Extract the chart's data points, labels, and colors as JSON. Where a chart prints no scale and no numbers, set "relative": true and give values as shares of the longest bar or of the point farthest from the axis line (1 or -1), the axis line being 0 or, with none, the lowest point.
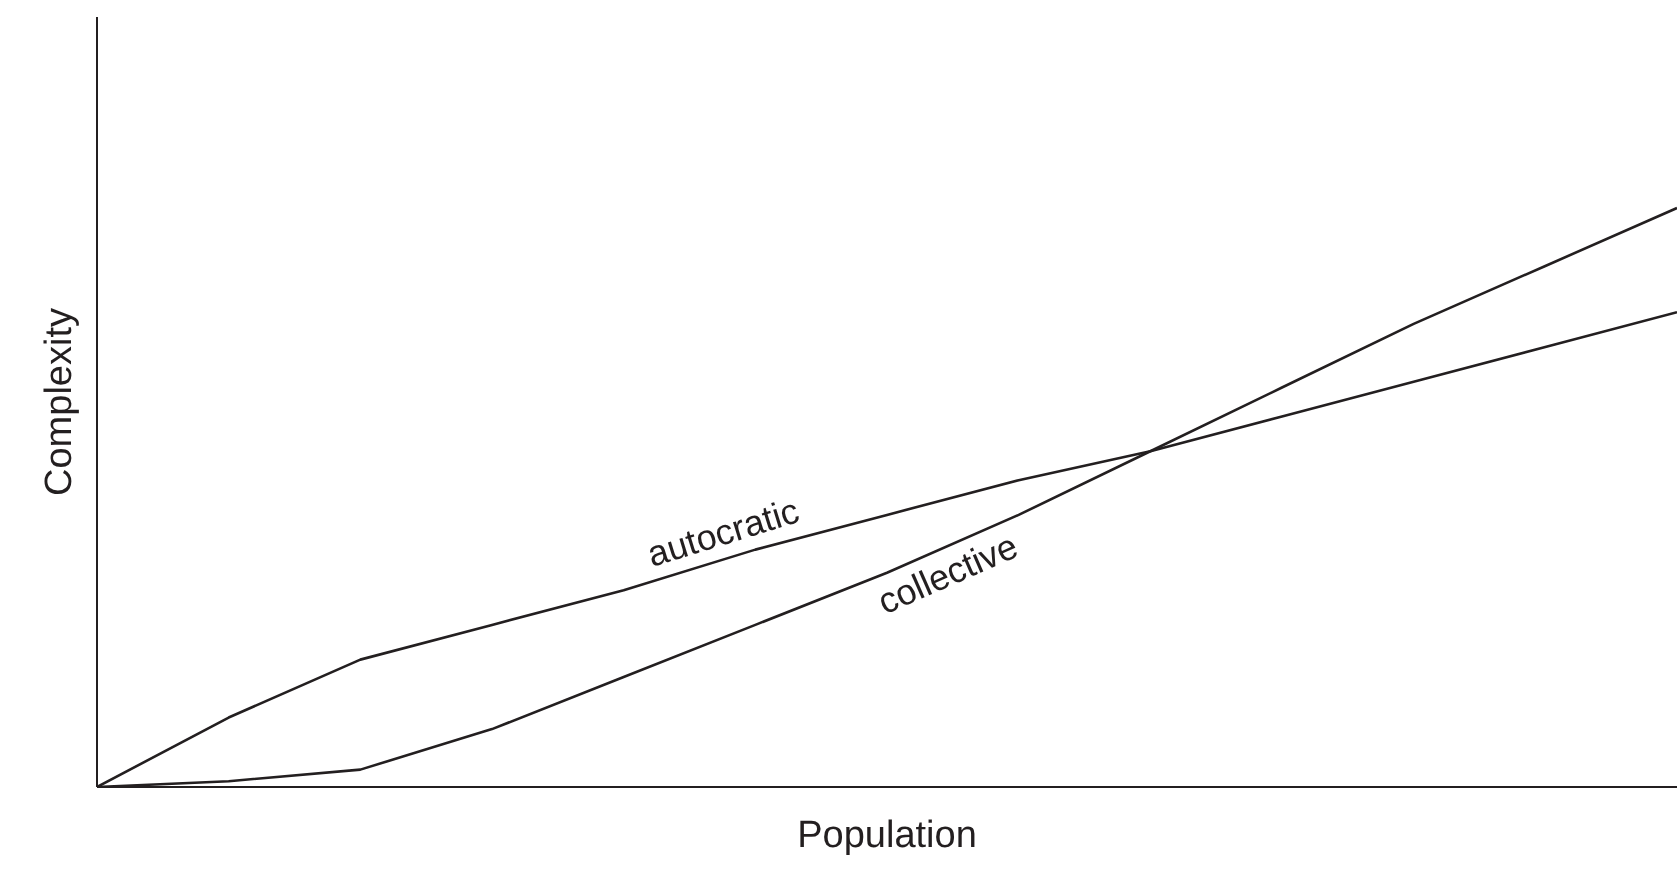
{
  "chart_data": {
    "type": "line",
    "relative": true,
    "xlabel": "Population",
    "ylabel": "Complexity",
    "categories": [
      null,
      null,
      null,
      null,
      null,
      null,
      null,
      null,
      null,
      null,
      null,
      null,
      null
    ],
    "series": [
      {
        "name": "autocratic",
        "color": "#231f20",
        "values": [
          0,
          0.12,
          0.22,
          0.28,
          0.34,
          0.41,
          0.47,
          0.53,
          0.58,
          0.64,
          0.7,
          0.76,
          0.82
        ]
      },
      {
        "name": "collective",
        "color": "#231f20",
        "values": [
          0,
          0.01,
          0.03,
          0.1,
          0.19,
          0.28,
          0.37,
          0.47,
          0.58,
          0.69,
          0.8,
          0.9,
          1
        ]
      }
    ]
  }
}
